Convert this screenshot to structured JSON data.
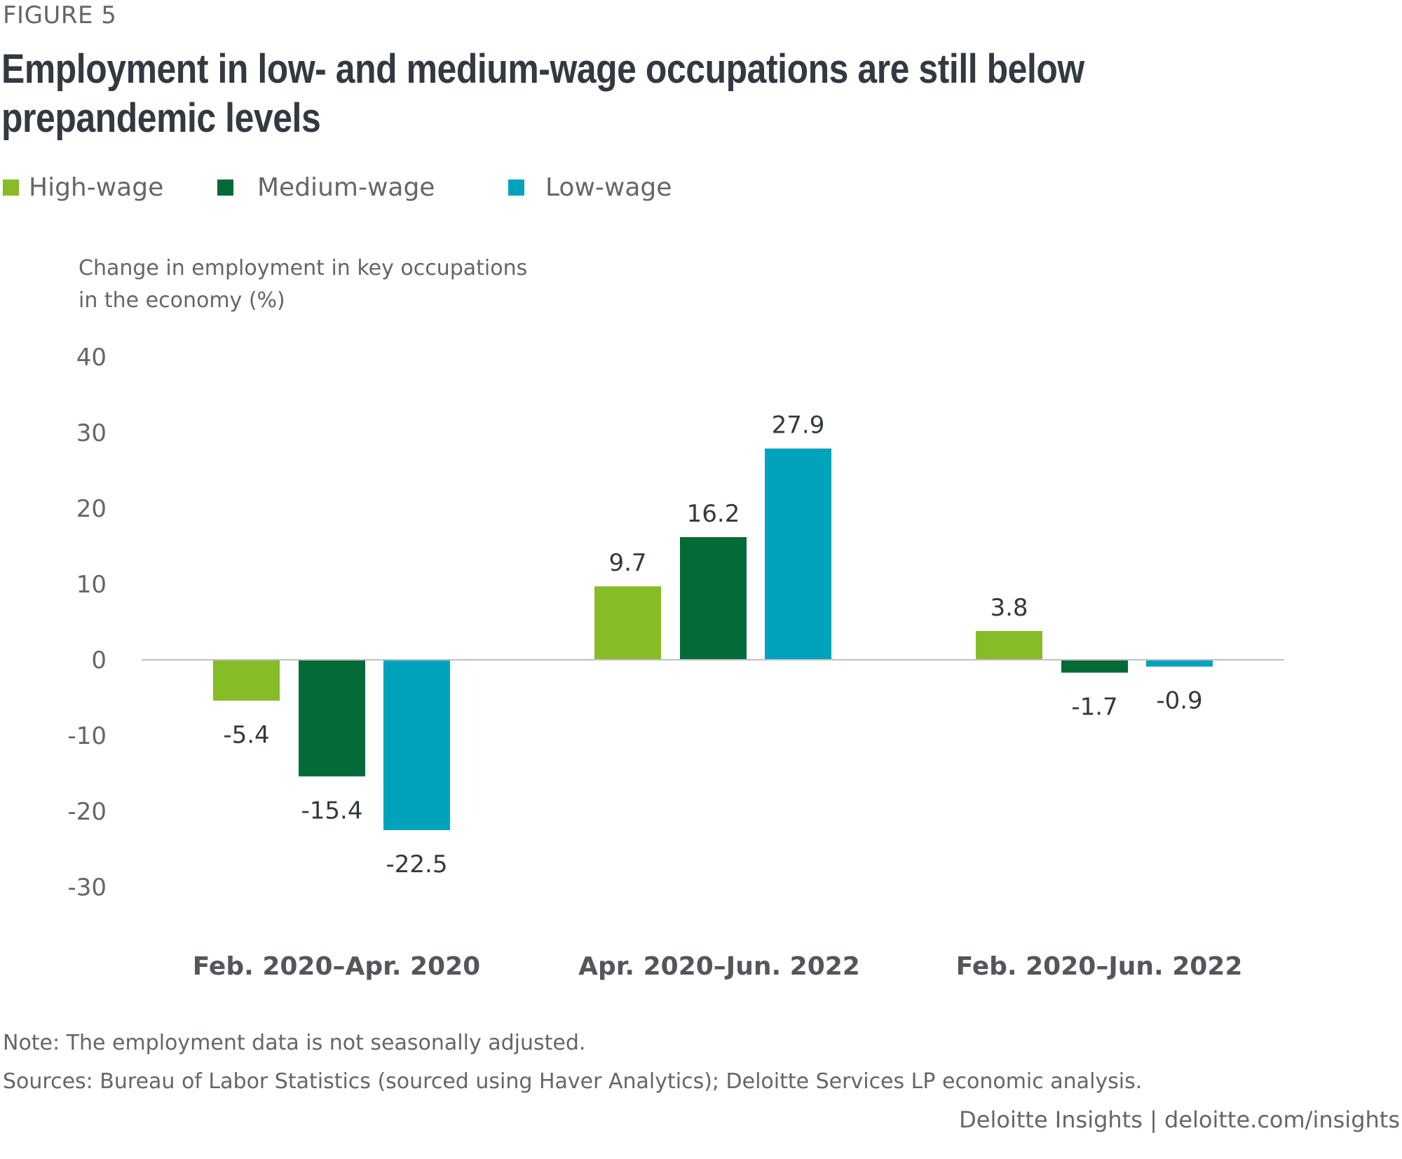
{
  "figure_label": "FIGURE 5",
  "title": "Employment in low- and medium-wage occupations are still below prepandemic levels",
  "legend": [
    {
      "label": "High-wage",
      "color": "#86BC25"
    },
    {
      "label": "Medium-wage",
      "color": "#046A38"
    },
    {
      "label": "Low-wage",
      "color": "#00A3BB"
    }
  ],
  "y_axis_title": "Change in employment in key occupations\nin the economy (%)",
  "note": "Note: The employment data is not seasonally adjusted.",
  "sources": "Sources: Bureau of Labor Statistics (sourced using Haver Analytics); Deloitte Services LP economic analysis.",
  "credit": "Deloitte Insights | deloitte.com/insights",
  "chart_data": {
    "type": "bar",
    "title": "Employment in low- and medium-wage occupations are still below prepandemic levels",
    "xlabel": "",
    "ylabel": "Change in employment in key occupations in the economy (%)",
    "categories": [
      "Feb. 2020–Apr. 2020",
      "Apr. 2020–Jun. 2022",
      "Feb. 2020–Jun. 2022"
    ],
    "series": [
      {
        "name": "High-wage",
        "color": "#86BC25",
        "values": [
          -5.4,
          9.7,
          3.8
        ],
        "labels": [
          "-5.4",
          "9.7",
          "3.8"
        ]
      },
      {
        "name": "Medium-wage",
        "color": "#046A38",
        "values": [
          -15.4,
          16.2,
          -1.7
        ],
        "labels": [
          "-15.4",
          "16.2",
          "-1.7"
        ]
      },
      {
        "name": "Low-wage",
        "color": "#00A3BB",
        "values": [
          -22.5,
          27.9,
          -0.9
        ],
        "labels": [
          "-22.5",
          "27.9",
          "-0.9"
        ]
      }
    ],
    "ylim": [
      -30,
      40
    ],
    "yticks": [
      40,
      30,
      20,
      10,
      0,
      -10,
      -20,
      -30
    ],
    "ytick_labels": [
      "40",
      "30",
      "20",
      "10",
      "0",
      "-10",
      "-20",
      "-30"
    ],
    "grid": false,
    "zero_line": true,
    "legend_position": "top-left"
  }
}
